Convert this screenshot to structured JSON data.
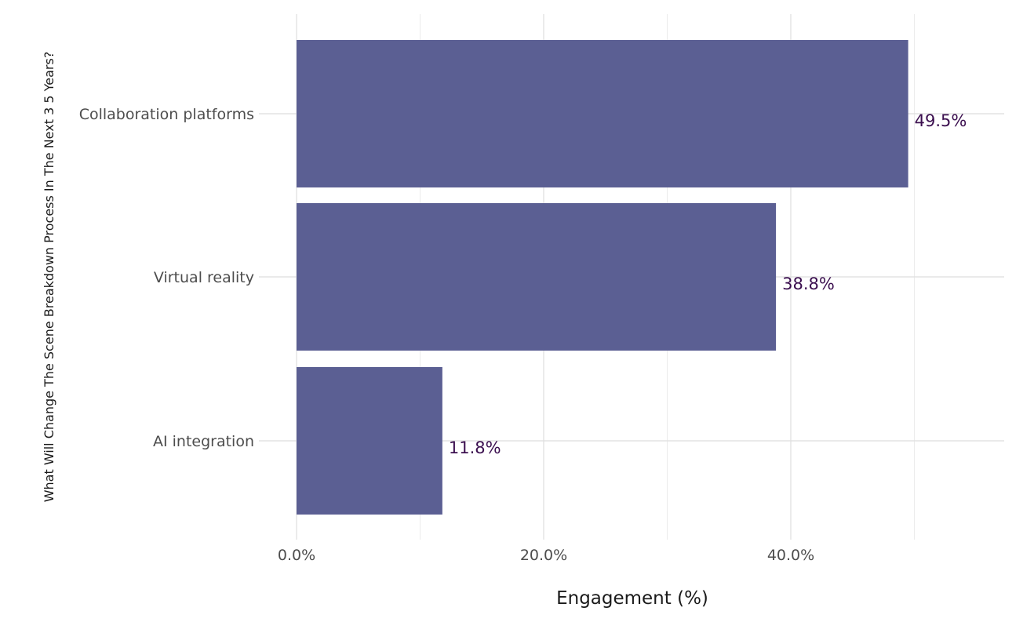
{
  "chart_data": {
    "type": "bar",
    "orientation": "horizontal",
    "categories": [
      "Collaboration platforms",
      "Virtual reality",
      "AI integration"
    ],
    "values": [
      49.5,
      38.8,
      11.8
    ],
    "data_labels": [
      "49.5%",
      "38.8%",
      "11.8%"
    ],
    "xlabel": "Engagement (%)",
    "ylabel": "What Will Change The Scene Breakdown Process In The Next 3 5 Years?",
    "xlim": [
      0,
      57.2
    ],
    "x_ticks": [
      0,
      20,
      40
    ],
    "x_tick_labels": [
      "0.0%",
      "20.0%",
      "40.0%"
    ],
    "grid": true,
    "legend": "none",
    "bar_color": "#5b5f93",
    "label_color": "#3b0f4f"
  }
}
